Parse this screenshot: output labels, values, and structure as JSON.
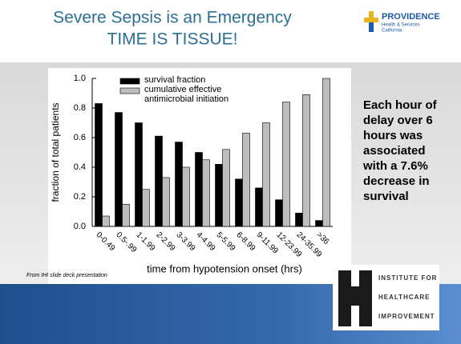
{
  "slide": {
    "title": [
      "Severe Sepsis is an Emergency",
      "TIME IS TISSUE!"
    ],
    "logo": {
      "name": "PROVIDENCE",
      "sub": [
        "Health & Services",
        "California"
      ]
    },
    "note": "Each hour of delay over 6 hours was associated with a 7.6% decrease in survival",
    "source": "From IHI slide deck presentation",
    "ihi": [
      "INSTITUTE FOR",
      "HEALTHCARE",
      "IMPROVEMENT"
    ]
  },
  "chart_data": {
    "type": "bar",
    "x_label": "time from hypotension onset (hrs)",
    "y_label": "fraction of total patients",
    "categories": [
      "0-0.49",
      "0.5-.99",
      "1-1.99",
      "2-2.99",
      "3-3.99",
      "4-4.99",
      "5-5.99",
      "6-8.99",
      "9-11.99",
      "12-23.99",
      "24-35.99",
      ">36"
    ],
    "series": [
      {
        "name": "survival fraction",
        "color": "#000000",
        "values": [
          0.83,
          0.77,
          0.7,
          0.61,
          0.57,
          0.5,
          0.42,
          0.32,
          0.26,
          0.18,
          0.09,
          0.04
        ]
      },
      {
        "name": "cumulative effective antimicrobial initiation",
        "color": "#bdbdbd",
        "values": [
          0.07,
          0.15,
          0.25,
          0.33,
          0.4,
          0.45,
          0.52,
          0.63,
          0.7,
          0.84,
          0.89,
          1.0
        ]
      }
    ],
    "ylim": [
      0,
      1
    ],
    "yticks": [
      {
        "value": 0,
        "label": "0.0"
      },
      0.2,
      0.4,
      0.6,
      0.8,
      {
        "value": 1,
        "label": "1.0"
      }
    ],
    "legend": "top-left"
  }
}
